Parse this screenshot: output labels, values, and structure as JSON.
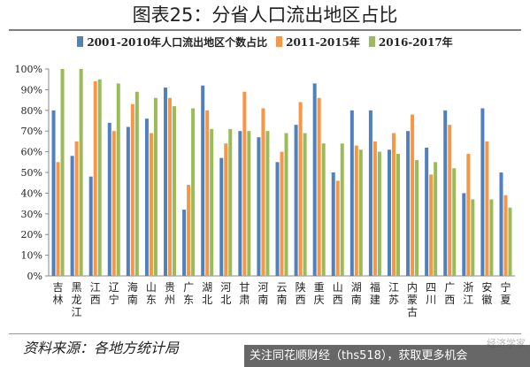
{
  "figure": {
    "title": "图表25：分省人口流出地区占比",
    "source_note": "资料来源：各地方统计局",
    "ad_text": "关注同花顺财经（ths518），获取更多机会",
    "watermark": "经济学家"
  },
  "colors": {
    "series": [
      "#4f81bd",
      "#f79646",
      "#9bbb59"
    ],
    "axis": "#888888",
    "grid": "#d9d9d9"
  },
  "chart_data": {
    "type": "bar",
    "title": "",
    "xlabel": "",
    "ylabel": "",
    "ylim": [
      0,
      100
    ],
    "yticks": [
      "0%",
      "10%",
      "20%",
      "30%",
      "40%",
      "50%",
      "60%",
      "70%",
      "80%",
      "90%",
      "100%"
    ],
    "grid": false,
    "legend_position": "top",
    "categories": [
      "吉林",
      "黑龙江",
      "江西",
      "辽宁",
      "海南",
      "山东",
      "贵州",
      "广东",
      "湖北",
      "河北",
      "甘肃",
      "河南",
      "云南",
      "陕西",
      "重庆",
      "山西",
      "湖南",
      "福建",
      "江苏",
      "内蒙古",
      "四川",
      "广西",
      "浙江",
      "安徽",
      "宁夏"
    ],
    "series": [
      {
        "name": "2001-2010年人口流出地区个数占比",
        "values": [
          80,
          58,
          48,
          74,
          72,
          76,
          91,
          32,
          92,
          57,
          70,
          67,
          55,
          73,
          93,
          50,
          80,
          80,
          61,
          70,
          62,
          80,
          40,
          81,
          50
        ]
      },
      {
        "name": "2011-2015年",
        "values": [
          55,
          65,
          94,
          70,
          83,
          69,
          86,
          44,
          80,
          64,
          89,
          81,
          60,
          84,
          86,
          46,
          63,
          65,
          69,
          78,
          49,
          73,
          59,
          65,
          39
        ]
      },
      {
        "name": "2016-2017年",
        "values": [
          100,
          100,
          95,
          93,
          89,
          86,
          82,
          81,
          71,
          71,
          70,
          70,
          69,
          69,
          64,
          64,
          61,
          60,
          59,
          56,
          55,
          52,
          37,
          37,
          33
        ]
      }
    ]
  }
}
